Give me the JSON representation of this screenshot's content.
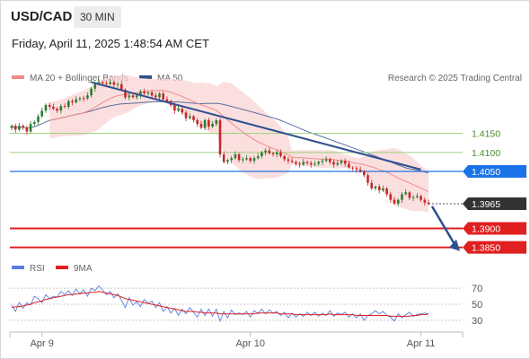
{
  "header": {
    "symbol": "USD/CAD",
    "interval": "30 MIN",
    "timestamp": "Friday, April 11, 2025 1:48:54 AM CET"
  },
  "legend": {
    "ma20": "MA 20 + Bollinger Bands",
    "ma50": "MA 50",
    "credit": "Research © 2025 Trading Central",
    "rsi": "RSI",
    "rsi_ma": "9MA"
  },
  "colors": {
    "candle_up": "#2e7d32",
    "candle_down": "#c62828",
    "ma20": "#f08a8a",
    "ma50": "#2f4f8f",
    "bollinger": "#f9d4d4",
    "trendline": "#2f4f8f",
    "resistance": "#9ccf7c",
    "pivot": "#1a73e8",
    "support": "#e02020",
    "last_price": "#333333",
    "rsi": "#5b7fe0",
    "rsi_ma": "#e02020"
  },
  "chart_data": [
    {
      "type": "candlestick",
      "x_labels": [
        "Apr 9",
        "Apr 10",
        "Apr 11"
      ],
      "ylim": [
        1.3835,
        1.4265
      ],
      "levels": [
        {
          "value": 1.415,
          "label": "1.4150",
          "kind": "resistance"
        },
        {
          "value": 1.41,
          "label": "1.4100",
          "kind": "resistance"
        },
        {
          "value": 1.405,
          "label": "1.4050",
          "kind": "pivot"
        },
        {
          "value": 1.39,
          "label": "1.3900",
          "kind": "support"
        },
        {
          "value": 1.385,
          "label": "1.3850",
          "kind": "support"
        }
      ],
      "last_price": {
        "value": 1.3965,
        "label": "1.3965"
      },
      "close": [
        1.417,
        1.416,
        1.417,
        1.4165,
        1.4155,
        1.4175,
        1.418,
        1.4195,
        1.421,
        1.4225,
        1.422,
        1.4215,
        1.421,
        1.4222,
        1.422,
        1.4235,
        1.4232,
        1.424,
        1.4243,
        1.4242,
        1.425,
        1.4268,
        1.428,
        1.4285,
        1.4282,
        1.428,
        1.4285,
        1.4278,
        1.428,
        1.4265,
        1.4245,
        1.425,
        1.4245,
        1.425,
        1.426,
        1.4255,
        1.4258,
        1.425,
        1.4245,
        1.4255,
        1.424,
        1.4235,
        1.4225,
        1.421,
        1.4215,
        1.4205,
        1.419,
        1.4195,
        1.4185,
        1.4175,
        1.4165,
        1.4185,
        1.4168,
        1.4175,
        1.4185,
        1.4095,
        1.4075,
        1.408,
        1.4085,
        1.4095,
        1.408,
        1.4082,
        1.4085,
        1.4078,
        1.4085,
        1.409,
        1.41,
        1.4105,
        1.4098,
        1.4095,
        1.41,
        1.409,
        1.4082,
        1.4078,
        1.4075,
        1.407,
        1.4068,
        1.4075,
        1.4072,
        1.4068,
        1.407,
        1.4075,
        1.4078,
        1.4082,
        1.4075,
        1.4068,
        1.4072,
        1.4078,
        1.407,
        1.406,
        1.4058,
        1.4055,
        1.405,
        1.404,
        1.402,
        1.4005,
        1.401,
        1.4,
        1.4005,
        1.399,
        1.3975,
        1.3965,
        1.3975,
        1.399,
        1.3995,
        1.398,
        1.3982,
        1.3985,
        1.3975,
        1.3968,
        1.3965
      ]
    },
    {
      "type": "line",
      "title": "RSI",
      "yticks": [
        30,
        50,
        70
      ],
      "ylim": [
        22,
        78
      ],
      "series": [
        {
          "name": "RSI",
          "values": [
            49,
            41,
            52,
            45,
            52,
            49,
            60,
            57,
            52,
            62,
            57,
            60,
            59,
            66,
            62,
            67,
            61,
            69,
            63,
            68,
            60,
            70,
            67,
            73,
            68,
            62,
            66,
            58,
            63,
            55,
            46,
            58,
            49,
            53,
            47,
            56,
            51,
            54,
            46,
            52,
            41,
            47,
            39,
            45,
            36,
            44,
            38,
            46,
            40,
            34,
            44,
            36,
            44,
            35,
            44,
            29,
            41,
            33,
            43,
            37,
            39,
            37,
            41,
            34,
            42,
            38,
            44,
            38,
            43,
            39,
            41,
            36,
            40,
            33,
            39,
            34,
            38,
            35,
            40,
            36,
            40,
            35,
            39,
            36,
            42,
            35,
            39,
            37,
            40,
            34,
            38,
            33,
            38,
            30,
            36,
            38,
            42,
            38,
            41,
            36,
            34,
            29,
            38,
            33,
            37,
            40,
            35,
            37,
            38,
            39,
            38
          ]
        },
        {
          "name": "9MA",
          "values": [
            46,
            47,
            47,
            48,
            49,
            50,
            52,
            53,
            54,
            56,
            57,
            58,
            59,
            60,
            61,
            62,
            62,
            63,
            63,
            64,
            64,
            65,
            65,
            66,
            65,
            64,
            63,
            62,
            61,
            59,
            57,
            56,
            55,
            54,
            53,
            52,
            51,
            50,
            49,
            48,
            47,
            46,
            45,
            44,
            43,
            42,
            41,
            41,
            41,
            40,
            40,
            39,
            39,
            39,
            39,
            38,
            38,
            38,
            38,
            38,
            38,
            38,
            38,
            38,
            38,
            39,
            39,
            39,
            39,
            39,
            39,
            38,
            38,
            38,
            38,
            37,
            37,
            37,
            37,
            37,
            37,
            37,
            37,
            37,
            38,
            37,
            37,
            37,
            37,
            37,
            37,
            36,
            36,
            36,
            36,
            36,
            36,
            36,
            36,
            36,
            35,
            35,
            35,
            35,
            35,
            35,
            36,
            36,
            37,
            37,
            38
          ]
        }
      ]
    }
  ]
}
